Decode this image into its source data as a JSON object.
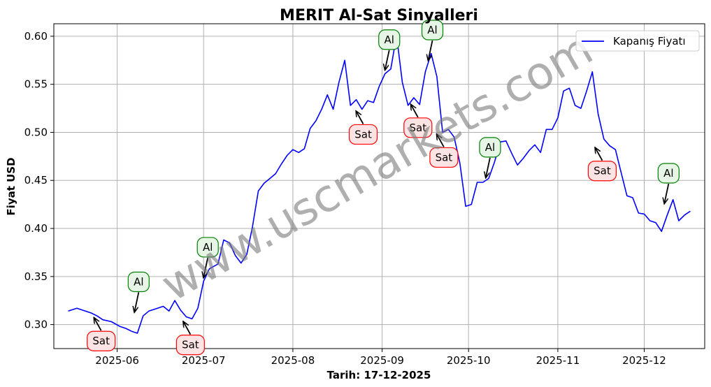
{
  "chart_data": {
    "type": "line",
    "title": "MERIT Al-Sat Sinyalleri",
    "xlabel": "Tarih: 17-12-2025",
    "ylabel": "Fiyat USD",
    "ylim": [
      0.275,
      0.613
    ],
    "grid": true,
    "legend_position": "top-right",
    "x_ticks": [
      "2025-06",
      "2025-07",
      "2025-08",
      "2025-09",
      "2025-10",
      "2025-11",
      "2025-12"
    ],
    "y_ticks": [
      "0.30",
      "0.35",
      "0.40",
      "0.45",
      "0.50",
      "0.55",
      "0.60"
    ],
    "series": [
      {
        "name": "Kapanış Fiyatı",
        "color": "#0000ff",
        "x": [
          "2025-05-15",
          "2025-05-18",
          "2025-05-20",
          "2025-05-23",
          "2025-05-25",
          "2025-05-27",
          "2025-05-30",
          "2025-06-02",
          "2025-06-04",
          "2025-06-06",
          "2025-06-08",
          "2025-06-10",
          "2025-06-12",
          "2025-06-14",
          "2025-06-17",
          "2025-06-19",
          "2025-06-21",
          "2025-06-23",
          "2025-06-25",
          "2025-06-27",
          "2025-06-29",
          "2025-07-01",
          "2025-07-03",
          "2025-07-06",
          "2025-07-08",
          "2025-07-10",
          "2025-07-12",
          "2025-07-14",
          "2025-07-16",
          "2025-07-18",
          "2025-07-20",
          "2025-07-22",
          "2025-07-24",
          "2025-07-26",
          "2025-07-28",
          "2025-07-30",
          "2025-08-01",
          "2025-08-03",
          "2025-08-05",
          "2025-08-07",
          "2025-08-09",
          "2025-08-11",
          "2025-08-13",
          "2025-08-15",
          "2025-08-17",
          "2025-08-19",
          "2025-08-21",
          "2025-08-23",
          "2025-08-25",
          "2025-08-27",
          "2025-08-29",
          "2025-08-31",
          "2025-09-02",
          "2025-09-04",
          "2025-09-06",
          "2025-09-08",
          "2025-09-10",
          "2025-09-12",
          "2025-09-14",
          "2025-09-16",
          "2025-09-18",
          "2025-09-20",
          "2025-09-22",
          "2025-09-24",
          "2025-09-26",
          "2025-09-28",
          "2025-09-30",
          "2025-10-02",
          "2025-10-04",
          "2025-10-06",
          "2025-10-08",
          "2025-10-10",
          "2025-10-12",
          "2025-10-14",
          "2025-10-16",
          "2025-10-18",
          "2025-10-20",
          "2025-10-22",
          "2025-10-24",
          "2025-10-26",
          "2025-10-28",
          "2025-10-30",
          "2025-11-01",
          "2025-11-03",
          "2025-11-05",
          "2025-11-07",
          "2025-11-09",
          "2025-11-11",
          "2025-11-13",
          "2025-11-15",
          "2025-11-17",
          "2025-11-19",
          "2025-11-21",
          "2025-11-23",
          "2025-11-25",
          "2025-11-27",
          "2025-11-29",
          "2025-12-01",
          "2025-12-03",
          "2025-12-05",
          "2025-12-07",
          "2025-12-09",
          "2025-12-11",
          "2025-12-13",
          "2025-12-15",
          "2025-12-17"
        ],
        "y": [
          0.314,
          0.317,
          0.315,
          0.312,
          0.309,
          0.305,
          0.303,
          0.298,
          0.296,
          0.293,
          0.291,
          0.309,
          0.314,
          0.316,
          0.319,
          0.314,
          0.325,
          0.315,
          0.308,
          0.306,
          0.317,
          0.345,
          0.358,
          0.363,
          0.388,
          0.385,
          0.372,
          0.364,
          0.373,
          0.402,
          0.439,
          0.447,
          0.452,
          0.457,
          0.467,
          0.476,
          0.482,
          0.479,
          0.483,
          0.504,
          0.512,
          0.524,
          0.539,
          0.524,
          0.552,
          0.575,
          0.528,
          0.534,
          0.524,
          0.533,
          0.531,
          0.548,
          0.561,
          0.566,
          0.601,
          0.552,
          0.528,
          0.536,
          0.529,
          0.563,
          0.582,
          0.558,
          0.5,
          0.503,
          0.495,
          0.468,
          0.423,
          0.425,
          0.448,
          0.448,
          0.452,
          0.469,
          0.49,
          0.491,
          0.478,
          0.466,
          0.473,
          0.481,
          0.487,
          0.479,
          0.503,
          0.503,
          0.515,
          0.543,
          0.546,
          0.528,
          0.525,
          0.543,
          0.563,
          0.519,
          0.493,
          0.486,
          0.482,
          0.458,
          0.434,
          0.432,
          0.416,
          0.415,
          0.408,
          0.406,
          0.397,
          0.414,
          0.43,
          0.408,
          0.414,
          0.418
        ]
      }
    ],
    "annotations": [
      {
        "text": "Al",
        "kind": "buy",
        "x": "2025-06-07",
        "y": 0.311
      },
      {
        "text": "Al",
        "kind": "buy",
        "x": "2025-07-01",
        "y": 0.347
      },
      {
        "text": "Al",
        "kind": "buy",
        "x": "2025-09-02",
        "y": 0.563
      },
      {
        "text": "Al",
        "kind": "buy",
        "x": "2025-09-17",
        "y": 0.573
      },
      {
        "text": "Al",
        "kind": "buy",
        "x": "2025-10-07",
        "y": 0.451
      },
      {
        "text": "Al",
        "kind": "buy",
        "x": "2025-12-08",
        "y": 0.424
      },
      {
        "text": "Sat",
        "kind": "sell",
        "x": "2025-05-24",
        "y": 0.309
      },
      {
        "text": "Sat",
        "kind": "sell",
        "x": "2025-06-24",
        "y": 0.305
      },
      {
        "text": "Sat",
        "kind": "sell",
        "x": "2025-08-23",
        "y": 0.524
      },
      {
        "text": "Sat",
        "kind": "sell",
        "x": "2025-09-11",
        "y": 0.531
      },
      {
        "text": "Sat",
        "kind": "sell",
        "x": "2025-09-20",
        "y": 0.5
      },
      {
        "text": "Sat",
        "kind": "sell",
        "x": "2025-11-14",
        "y": 0.486
      }
    ],
    "watermark": "www.uscmarkets.com"
  }
}
